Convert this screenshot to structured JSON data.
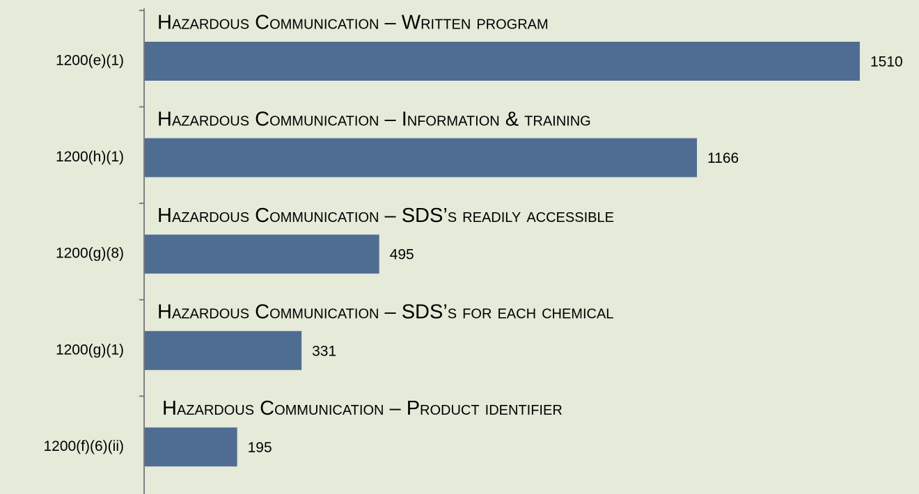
{
  "chart_data": {
    "type": "bar",
    "orientation": "horizontal",
    "categories": [
      "1200(e)(1)",
      "1200(h)(1)",
      "1200(g)(8)",
      "1200(g)(1)",
      "1200(f)(6)(ii)"
    ],
    "values": [
      1510,
      1166,
      495,
      331,
      195
    ],
    "annotations": [
      "Hazardous Communication – Written program",
      "Hazardous Communication – Information & training",
      "Hazardous Communication – SDS’s readily accessible",
      "Hazardous Communication – SDS’s for each chemical",
      "Hazardous Communication – Product identifier"
    ],
    "color": "#4f6d93"
  }
}
